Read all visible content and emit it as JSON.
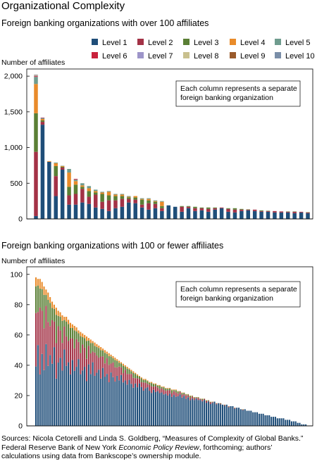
{
  "title": "Organizational Complexity",
  "sources": {
    "line1": "Sources: Nicola Cetorelli and Linda S. Goldberg, “Measures of Complexity of Global Banks.”",
    "line2a": "Federal Reserve Bank of New York ",
    "line2b": "Economic Policy Review",
    "line2c": ", forthcoming; authors’",
    "line3": "calculations using data from Bankscope’s ownership module."
  },
  "legend": [
    {
      "label": "Level 1",
      "color": "#1f4e79"
    },
    {
      "label": "Level 2",
      "color": "#a33246"
    },
    {
      "label": "Level 3",
      "color": "#5a7f35"
    },
    {
      "label": "Level 4",
      "color": "#e98b2a"
    },
    {
      "label": "Level 5",
      "color": "#6f9c8e"
    },
    {
      "label": "Level 6",
      "color": "#c9213c"
    },
    {
      "label": "Level 7",
      "color": "#9d95c9"
    },
    {
      "label": "Level 8",
      "color": "#c9c08e"
    },
    {
      "label": "Level 9",
      "color": "#9a5a2b"
    },
    {
      "label": "Level 10",
      "color": "#7a8ea8"
    }
  ],
  "chart_data": [
    {
      "type": "bar",
      "stacked": true,
      "title": "Foreign banking organizations with over 100 affiliates",
      "ylabel": "Number of affiliates",
      "ylim": [
        0,
        2100
      ],
      "yticks": [
        0,
        500,
        1000,
        1500,
        2000
      ],
      "ytick_labels": [
        "0",
        "500",
        "1,000",
        "1,500",
        "2,000"
      ],
      "annotation": [
        "Each column represents a separate",
        "foreign banking organization"
      ],
      "stacks": [
        [
          40,
          900,
          540,
          410,
          100,
          10,
          5,
          5,
          5,
          5
        ],
        [
          1320,
          40,
          20,
          20,
          10,
          5,
          5,
          0,
          0,
          0
        ],
        [
          800,
          0,
          0,
          10,
          0,
          0,
          0,
          0,
          0,
          0
        ],
        [
          320,
          280,
          140,
          40,
          10,
          0,
          0,
          0,
          0,
          0
        ],
        [
          690,
          30,
          10,
          10,
          5,
          0,
          0,
          0,
          0,
          0
        ],
        [
          200,
          130,
          120,
          200,
          50,
          0,
          0,
          0,
          0,
          0
        ],
        [
          200,
          150,
          130,
          50,
          20,
          10,
          0,
          0,
          0,
          0
        ],
        [
          230,
          190,
          30,
          20,
          30,
          0,
          0,
          0,
          0,
          0
        ],
        [
          210,
          100,
          80,
          40,
          30,
          0,
          0,
          0,
          0,
          0
        ],
        [
          160,
          180,
          30,
          20,
          20,
          0,
          0,
          0,
          0,
          0
        ],
        [
          140,
          100,
          110,
          20,
          10,
          0,
          0,
          0,
          0,
          0
        ],
        [
          110,
          150,
          70,
          50,
          10,
          0,
          0,
          0,
          0,
          0
        ],
        [
          150,
          110,
          60,
          20,
          10,
          0,
          0,
          0,
          0,
          0
        ],
        [
          170,
          110,
          40,
          20,
          10,
          0,
          0,
          0,
          0,
          0
        ],
        [
          230,
          50,
          20,
          10,
          10,
          0,
          0,
          0,
          0,
          0
        ],
        [
          220,
          50,
          30,
          20,
          0,
          0,
          0,
          0,
          0,
          0
        ],
        [
          160,
          40,
          70,
          10,
          10,
          0,
          0,
          0,
          0,
          0
        ],
        [
          130,
          90,
          40,
          20,
          10,
          0,
          0,
          0,
          0,
          0
        ],
        [
          150,
          60,
          30,
          10,
          10,
          0,
          0,
          0,
          0,
          0
        ],
        [
          110,
          40,
          30,
          60,
          10,
          0,
          0,
          0,
          0,
          0
        ],
        [
          190,
          0,
          0,
          0,
          0,
          0,
          0,
          0,
          0,
          0
        ],
        [
          170,
          0,
          0,
          0,
          0,
          0,
          0,
          0,
          0,
          0
        ],
        [
          100,
          70,
          10,
          0,
          0,
          0,
          0,
          0,
          0,
          0
        ],
        [
          150,
          20,
          10,
          0,
          0,
          0,
          0,
          0,
          0,
          0
        ],
        [
          110,
          40,
          20,
          0,
          0,
          0,
          0,
          0,
          0,
          0
        ],
        [
          120,
          30,
          10,
          0,
          0,
          0,
          0,
          0,
          0,
          0
        ],
        [
          100,
          40,
          20,
          0,
          0,
          0,
          0,
          0,
          0,
          0
        ],
        [
          130,
          20,
          10,
          0,
          0,
          0,
          0,
          0,
          0,
          0
        ],
        [
          150,
          10,
          0,
          0,
          0,
          0,
          0,
          0,
          0,
          0
        ],
        [
          100,
          40,
          10,
          0,
          0,
          0,
          0,
          0,
          0,
          0
        ],
        [
          90,
          40,
          20,
          0,
          0,
          0,
          0,
          0,
          0,
          0
        ],
        [
          110,
          20,
          10,
          0,
          0,
          0,
          0,
          0,
          0,
          0
        ],
        [
          120,
          10,
          5,
          0,
          0,
          0,
          0,
          0,
          0,
          0
        ],
        [
          110,
          20,
          0,
          0,
          0,
          0,
          0,
          0,
          0,
          0
        ],
        [
          100,
          10,
          10,
          0,
          0,
          0,
          0,
          0,
          0,
          0
        ],
        [
          100,
          10,
          5,
          0,
          0,
          0,
          0,
          0,
          0,
          0
        ],
        [
          90,
          20,
          0,
          0,
          0,
          0,
          0,
          0,
          0,
          0
        ],
        [
          90,
          15,
          0,
          0,
          0,
          0,
          0,
          0,
          0,
          0
        ],
        [
          90,
          10,
          5,
          0,
          0,
          0,
          0,
          0,
          0,
          0
        ],
        [
          80,
          20,
          5,
          0,
          0,
          0,
          0,
          0,
          0,
          0
        ],
        [
          90,
          10,
          0,
          0,
          0,
          0,
          0,
          0,
          0,
          0
        ],
        [
          80,
          10,
          5,
          0,
          0,
          0,
          0,
          0,
          0,
          0
        ]
      ]
    },
    {
      "type": "bar",
      "stacked": true,
      "title": "Foreign banking organizations with 100 or fewer affiliates",
      "ylabel": "Number of affiliates",
      "ylim": [
        0,
        105
      ],
      "yticks": [
        0,
        20,
        40,
        60,
        80,
        100
      ],
      "ytick_labels": [
        "0",
        "20",
        "40",
        "60",
        "80",
        "100"
      ],
      "annotation": [
        "Each column represents a separate",
        "foreign banking organization"
      ],
      "totals": [
        98,
        97,
        97,
        95,
        92,
        90,
        88,
        85,
        82,
        80,
        78,
        76,
        75,
        73,
        72,
        72,
        70,
        68,
        67,
        66,
        65,
        63,
        62,
        61,
        60,
        59,
        58,
        57,
        56,
        55,
        54,
        53,
        52,
        51,
        50,
        49,
        48,
        47,
        46,
        45,
        44,
        43,
        42,
        41,
        40,
        39,
        38,
        37,
        36,
        35,
        34,
        33,
        32,
        31,
        31,
        30,
        29,
        29,
        28,
        28,
        27,
        27,
        26,
        26,
        25,
        25,
        25,
        24,
        24,
        24,
        23,
        23,
        22,
        22,
        21,
        21,
        20,
        20,
        19,
        19,
        19,
        18,
        18,
        18,
        17,
        17,
        16,
        16,
        16,
        15,
        15,
        15,
        14,
        14,
        14,
        13,
        13,
        13,
        12,
        12,
        12,
        11,
        11,
        11,
        10,
        10,
        10,
        9,
        9,
        9,
        8,
        8,
        8,
        7,
        7,
        7,
        6,
        6,
        6,
        5,
        5,
        5,
        5,
        4,
        4,
        4,
        3,
        3,
        3,
        2,
        2,
        1,
        1,
        1,
        0
      ],
      "level1_shares": [
        0.4,
        0.55,
        0.35,
        0.5,
        0.4,
        0.6,
        0.45,
        0.55,
        0.5,
        0.65,
        0.4,
        0.55,
        0.6,
        0.5,
        0.7,
        0.55,
        0.6,
        0.5,
        0.65,
        0.55,
        0.6,
        0.7,
        0.55,
        0.6,
        0.65,
        0.5,
        0.7,
        0.6,
        0.75,
        0.6,
        0.65,
        0.7,
        0.6,
        0.75,
        0.65,
        0.7,
        0.6,
        0.75,
        0.7,
        0.65,
        0.75,
        0.7,
        0.8,
        0.7,
        0.75,
        0.7,
        0.8,
        0.75,
        0.7,
        0.8,
        0.75,
        0.85,
        0.8,
        0.75,
        0.8,
        0.85,
        0.8,
        0.75,
        0.85,
        0.8,
        0.85,
        0.8,
        0.85,
        0.8,
        0.85,
        0.8,
        0.85,
        0.8,
        0.85,
        0.8,
        0.85,
        0.9,
        0.85,
        0.9,
        0.85,
        0.9,
        0.85,
        0.9,
        0.9,
        0.95,
        0.9,
        0.95,
        0.9,
        0.95,
        0.9,
        0.95,
        0.9,
        0.95,
        1.0,
        0.95,
        1.0,
        0.95,
        1.0,
        0.95,
        1.0,
        0.95,
        1.0,
        1.0,
        0.95,
        1.0,
        1.0,
        1.0,
        0.95,
        1.0,
        1.0,
        1.0,
        1.0,
        1.0,
        1.0,
        1.0,
        1.0,
        1.0,
        1.0,
        1.0,
        1.0,
        1.0,
        1.0,
        1.0,
        1.0,
        1.0,
        1.0,
        1.0,
        1.0,
        1.0,
        1.0,
        1.0,
        1.0,
        1.0,
        1.0,
        1.0,
        1.0,
        1.0,
        1.0,
        1.0,
        1.0
      ]
    }
  ]
}
